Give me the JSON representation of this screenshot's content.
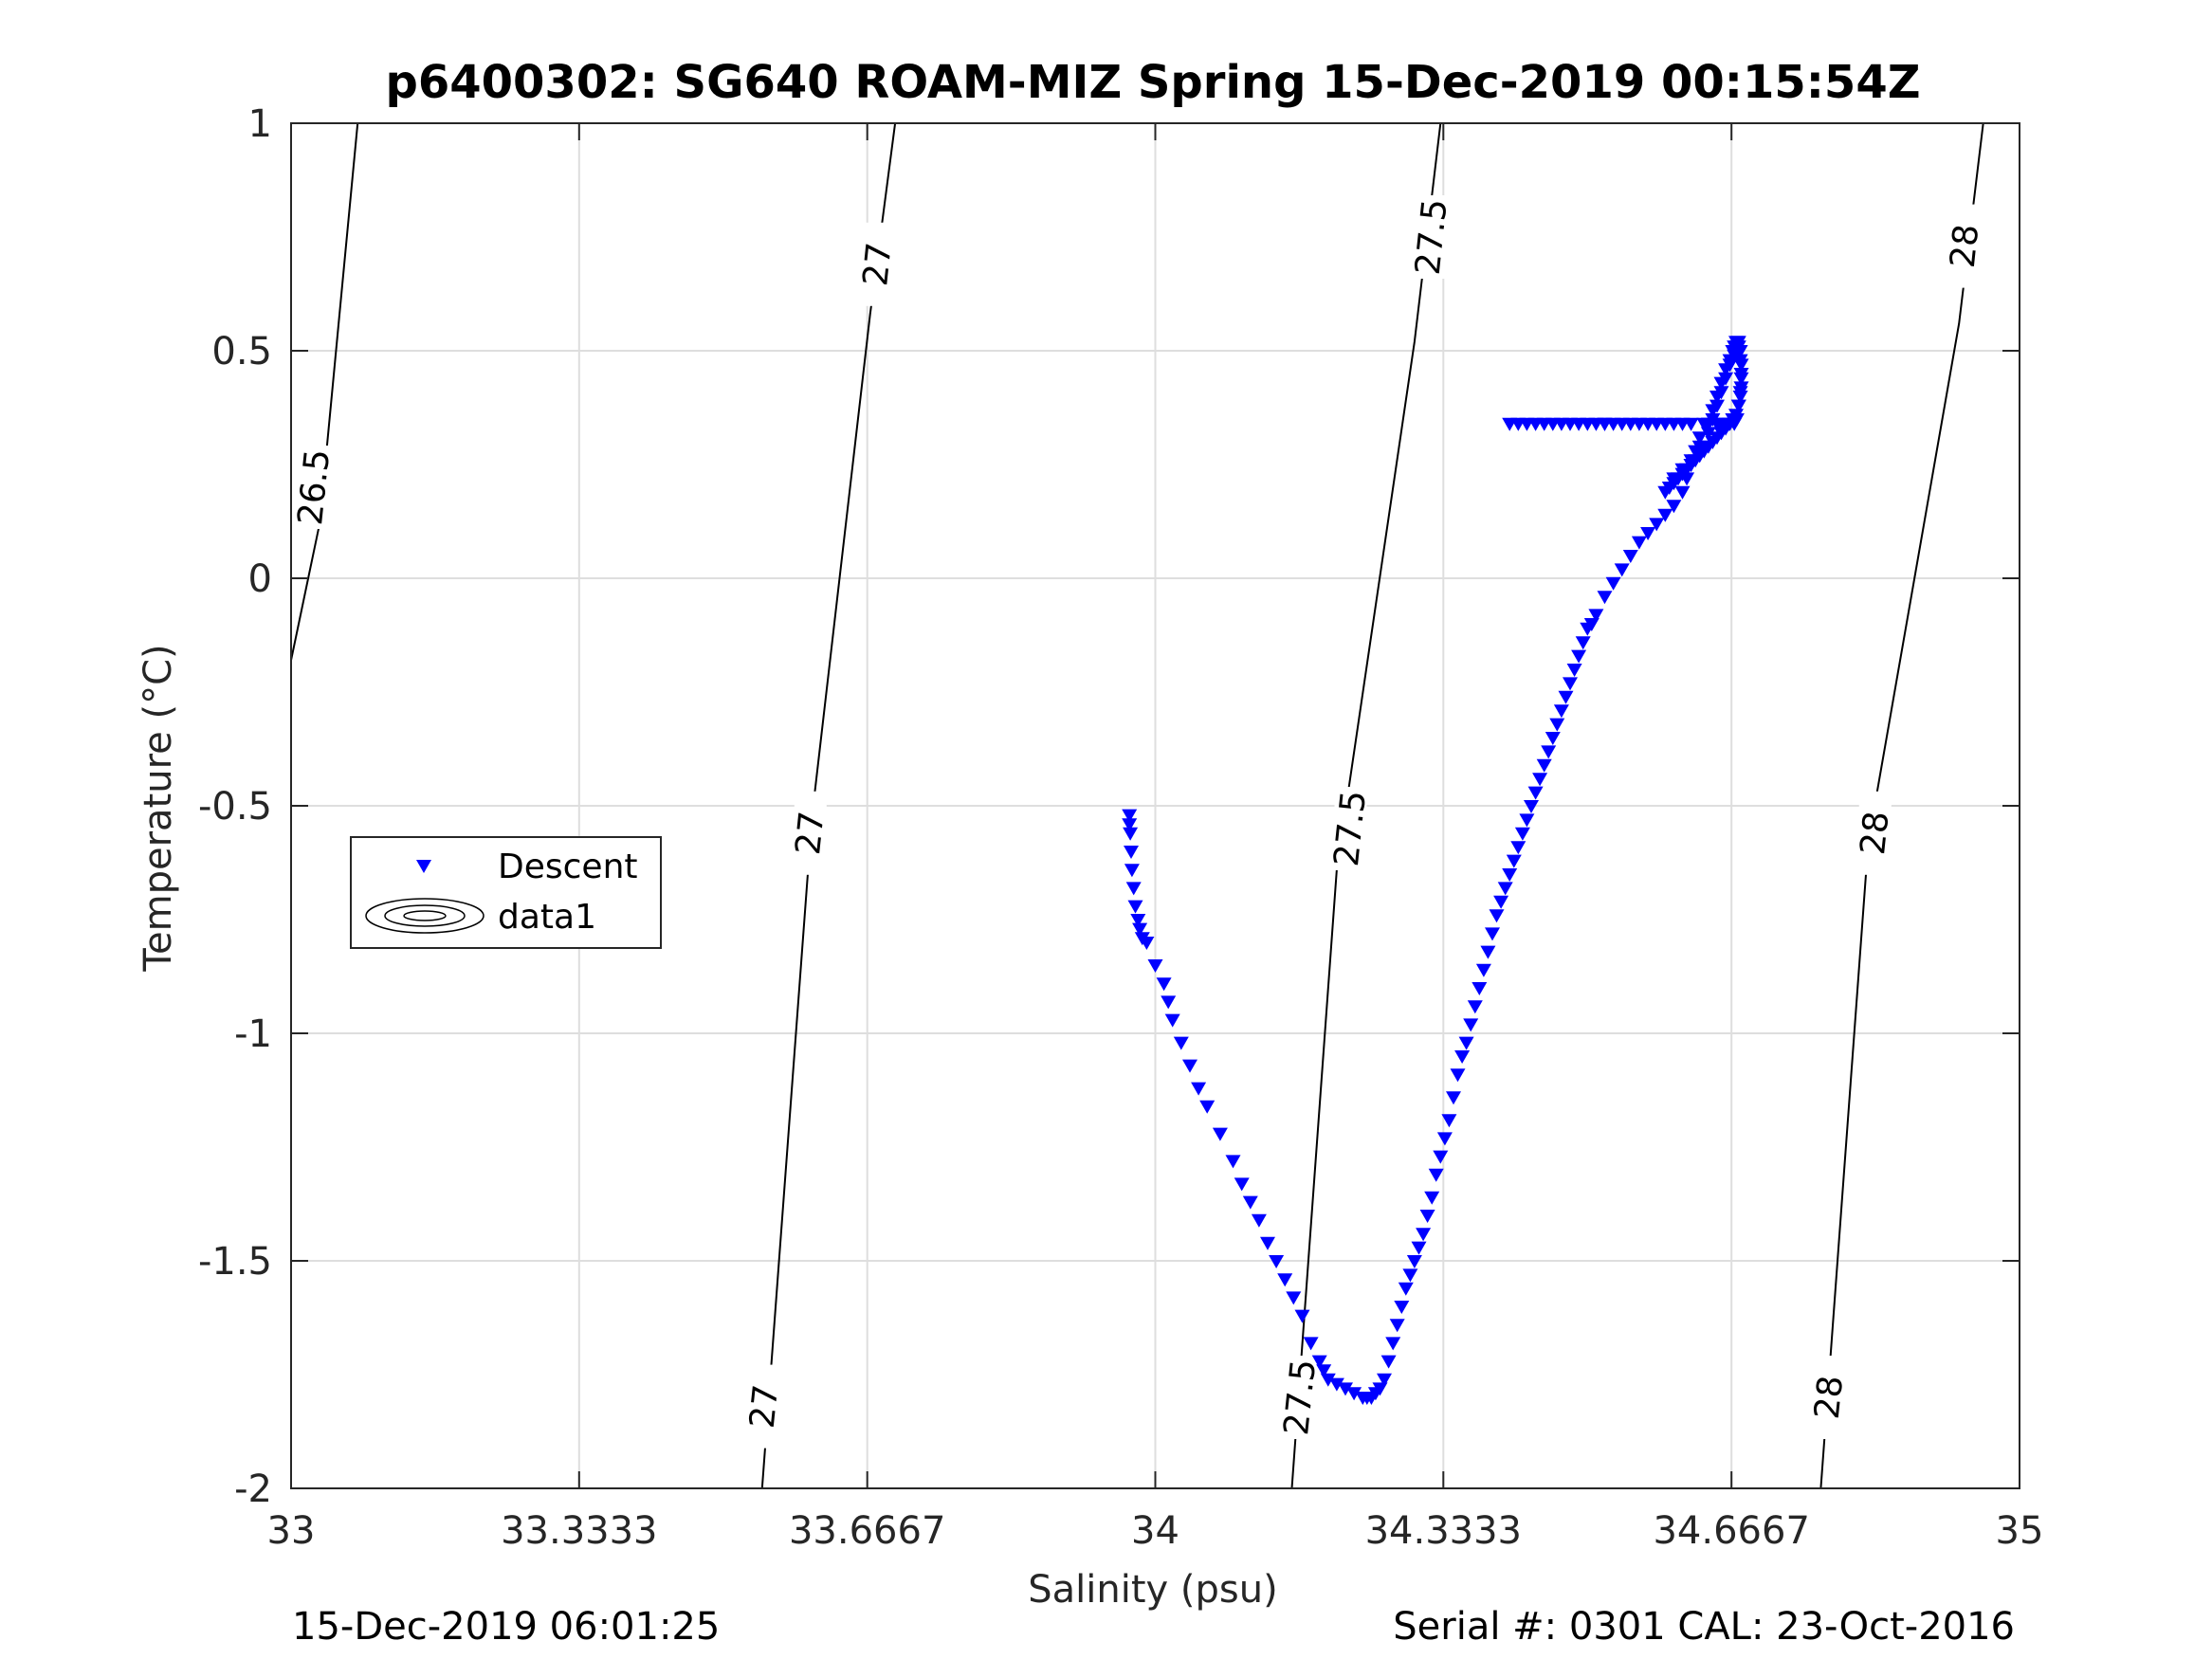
{
  "chart_data": {
    "type": "scatter",
    "title": "p6400302: SG640 ROAM-MIZ Spring 15-Dec-2019 00:15:54Z",
    "xlabel": "Salinity (psu)",
    "ylabel": "Temperature (°C)",
    "xlim": [
      33,
      35
    ],
    "ylim": [
      -2,
      1
    ],
    "xticks": [
      33,
      33.3333,
      33.6667,
      34,
      34.3333,
      34.6667,
      35
    ],
    "xtick_labels": [
      "33",
      "33.3333",
      "33.6667",
      "34",
      "34.3333",
      "34.6667",
      "35"
    ],
    "yticks": [
      -2,
      -1.5,
      -1,
      -0.5,
      0,
      0.5,
      1
    ],
    "ytick_labels": [
      "-2",
      "-1.5",
      "-1",
      "-0.5",
      "0",
      "0.5",
      "1"
    ],
    "grid": true,
    "legend": {
      "placement": "middle-left",
      "entries": [
        {
          "label": "Descent",
          "marker": "triangle-down",
          "color": "#0000ff"
        },
        {
          "label": "data1",
          "marker": "contour",
          "color": "#000000"
        }
      ]
    },
    "series": [
      {
        "name": "Descent",
        "marker": "triangle-down",
        "color": "#0000ff",
        "x": [
          33.97,
          33.97,
          33.971,
          33.972,
          33.973,
          33.975,
          33.977,
          33.98,
          33.982,
          33.985,
          33.99,
          34.0,
          34.01,
          34.015,
          34.02,
          34.03,
          34.04,
          34.05,
          34.06,
          34.075,
          34.09,
          34.1,
          34.11,
          34.12,
          34.13,
          34.14,
          34.15,
          34.16,
          34.17,
          34.18,
          34.19,
          34.195,
          34.2,
          34.21,
          34.22,
          34.23,
          34.24,
          34.245,
          34.25,
          34.255,
          34.26,
          34.265,
          34.27,
          34.275,
          34.28,
          34.285,
          34.29,
          34.295,
          34.3,
          34.305,
          34.31,
          34.315,
          34.32,
          34.325,
          34.33,
          34.335,
          34.34,
          34.345,
          34.35,
          34.355,
          34.36,
          34.365,
          34.37,
          34.375,
          34.38,
          34.385,
          34.39,
          34.395,
          34.4,
          34.405,
          34.41,
          34.415,
          34.42,
          34.425,
          34.43,
          34.435,
          34.44,
          34.445,
          34.45,
          34.455,
          34.46,
          34.465,
          34.47,
          34.475,
          34.48,
          34.485,
          34.49,
          34.495,
          34.5,
          34.505,
          34.51,
          34.52,
          34.53,
          34.54,
          34.55,
          34.56,
          34.57,
          34.58,
          34.59,
          34.6,
          34.61,
          34.615,
          34.62,
          34.625,
          34.63,
          34.64,
          34.645,
          34.65,
          34.655,
          34.66,
          34.665,
          34.668,
          34.67,
          34.672,
          34.674,
          34.675,
          34.676,
          34.677,
          34.678,
          34.678,
          34.677,
          34.675,
          34.672,
          34.668,
          34.664,
          34.66,
          34.655,
          34.65,
          34.645,
          34.64,
          34.635,
          34.63,
          34.625,
          34.62,
          34.615,
          34.61,
          34.605,
          34.6,
          34.595,
          34.59,
          34.6,
          34.61,
          34.62,
          34.63,
          34.64,
          34.645,
          34.65,
          34.655,
          34.66,
          34.665,
          34.67,
          34.673,
          34.675,
          34.677,
          34.678,
          34.678,
          34.677,
          34.675,
          34.673,
          34.67,
          34.665,
          34.66,
          34.655,
          34.65,
          34.64,
          34.635,
          34.62,
          34.61,
          34.6,
          34.59,
          34.58,
          34.57,
          34.56,
          34.55,
          34.54,
          34.53,
          34.52
        ],
        "y": [
          -0.52,
          -0.54,
          -0.56,
          -0.6,
          -0.64,
          -0.68,
          -0.72,
          -0.75,
          -0.77,
          -0.79,
          -0.8,
          -0.85,
          -0.89,
          -0.93,
          -0.97,
          -1.02,
          -1.07,
          -1.12,
          -1.16,
          -1.22,
          -1.28,
          -1.33,
          -1.37,
          -1.41,
          -1.46,
          -1.5,
          -1.54,
          -1.58,
          -1.62,
          -1.68,
          -1.72,
          -1.74,
          -1.76,
          -1.77,
          -1.78,
          -1.79,
          -1.8,
          -1.8,
          -1.8,
          -1.79,
          -1.78,
          -1.76,
          -1.72,
          -1.68,
          -1.64,
          -1.6,
          -1.56,
          -1.53,
          -1.5,
          -1.47,
          -1.44,
          -1.4,
          -1.36,
          -1.31,
          -1.27,
          -1.23,
          -1.19,
          -1.14,
          -1.09,
          -1.05,
          -1.02,
          -0.98,
          -0.94,
          -0.9,
          -0.86,
          -0.82,
          -0.78,
          -0.74,
          -0.71,
          -0.68,
          -0.65,
          -0.62,
          -0.59,
          -0.56,
          -0.53,
          -0.5,
          -0.47,
          -0.44,
          -0.41,
          -0.38,
          -0.35,
          -0.32,
          -0.29,
          -0.26,
          -0.23,
          -0.2,
          -0.17,
          -0.14,
          -0.11,
          -0.1,
          -0.08,
          -0.04,
          -0.01,
          0.02,
          0.05,
          0.08,
          0.1,
          0.12,
          0.14,
          0.16,
          0.19,
          0.22,
          0.25,
          0.28,
          0.31,
          0.34,
          0.37,
          0.4,
          0.43,
          0.46,
          0.48,
          0.5,
          0.51,
          0.52,
          0.52,
          0.51,
          0.5,
          0.48,
          0.45,
          0.42,
          0.4,
          0.38,
          0.36,
          0.35,
          0.34,
          0.33,
          0.32,
          0.31,
          0.3,
          0.29,
          0.28,
          0.27,
          0.26,
          0.25,
          0.24,
          0.23,
          0.22,
          0.21,
          0.2,
          0.19,
          0.22,
          0.24,
          0.26,
          0.29,
          0.32,
          0.35,
          0.38,
          0.41,
          0.44,
          0.47,
          0.49,
          0.51,
          0.52,
          0.5,
          0.47,
          0.44,
          0.41,
          0.38,
          0.35,
          0.34,
          0.34,
          0.34,
          0.34,
          0.34,
          0.34,
          0.34,
          0.34,
          0.34,
          0.34,
          0.34,
          0.34,
          0.34,
          0.34,
          0.34,
          0.34,
          0.34,
          0.34
        ]
      },
      {
        "name": "Descent",
        "marker": "triangle-down",
        "color": "#0000ff",
        "x": [
          34.51,
          34.5,
          34.49,
          34.48,
          34.47,
          34.46,
          34.45,
          34.44,
          34.43,
          34.42,
          34.41,
          34.52
        ],
        "y": [
          0.34,
          0.34,
          0.34,
          0.34,
          0.34,
          0.34,
          0.34,
          0.34,
          0.34,
          0.34,
          0.34,
          0.34
        ]
      }
    ],
    "contours": [
      {
        "level": "26.5",
        "points": [
          [
            33.0,
            -0.18
          ],
          [
            33.033,
            0.12
          ],
          [
            33.077,
            1.0
          ]
        ],
        "labels": [
          {
            "text": "26.5",
            "x": 33.027,
            "y": 0.2
          }
        ]
      },
      {
        "level": "27",
        "points": [
          [
            33.545,
            -2.0
          ],
          [
            33.603,
            -0.52
          ],
          [
            33.67,
            0.58
          ],
          [
            33.699,
            1.0
          ]
        ],
        "labels": [
          {
            "text": "27",
            "x": 33.548,
            "y": -1.82
          },
          {
            "text": "27",
            "x": 33.601,
            "y": -0.56
          },
          {
            "text": "27",
            "x": 33.679,
            "y": 0.69
          }
        ]
      },
      {
        "level": "27.5",
        "points": [
          [
            34.158,
            -2.0
          ],
          [
            34.21,
            -0.64
          ],
          [
            34.3,
            0.52
          ],
          [
            34.33,
            1.0
          ]
        ],
        "labels": [
          {
            "text": "27.5",
            "x": 34.168,
            "y": -1.8
          },
          {
            "text": "27.5",
            "x": 34.226,
            "y": -0.55
          },
          {
            "text": "27.5",
            "x": 34.32,
            "y": 0.75
          }
        ]
      },
      {
        "level": "28",
        "points": [
          [
            34.77,
            -2.0
          ],
          [
            34.825,
            -0.58
          ],
          [
            34.93,
            0.56
          ],
          [
            34.958,
            1.0
          ]
        ],
        "labels": [
          {
            "text": "28",
            "x": 34.78,
            "y": -1.8
          },
          {
            "text": "28",
            "x": 34.833,
            "y": -0.56
          },
          {
            "text": "28",
            "x": 34.937,
            "y": 0.73
          }
        ]
      }
    ]
  },
  "footer": {
    "left": "15-Dec-2019 06:01:25",
    "right": "Serial #: 0301  CAL: 23-Oct-2016"
  }
}
